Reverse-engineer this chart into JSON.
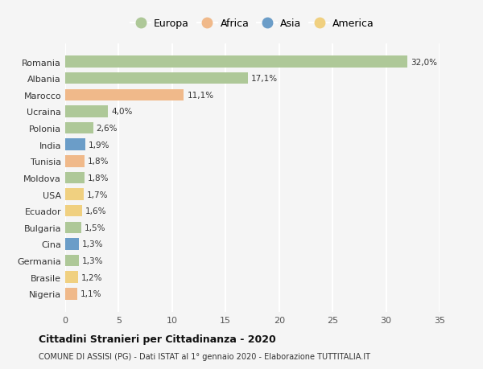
{
  "countries": [
    "Romania",
    "Albania",
    "Marocco",
    "Ucraina",
    "Polonia",
    "India",
    "Tunisia",
    "Moldova",
    "USA",
    "Ecuador",
    "Bulgaria",
    "Cina",
    "Germania",
    "Brasile",
    "Nigeria"
  ],
  "values": [
    32.0,
    17.1,
    11.1,
    4.0,
    2.6,
    1.9,
    1.8,
    1.8,
    1.7,
    1.6,
    1.5,
    1.3,
    1.3,
    1.2,
    1.1
  ],
  "labels": [
    "32,0%",
    "17,1%",
    "11,1%",
    "4,0%",
    "2,6%",
    "1,9%",
    "1,8%",
    "1,8%",
    "1,7%",
    "1,6%",
    "1,5%",
    "1,3%",
    "1,3%",
    "1,2%",
    "1,1%"
  ],
  "continents": [
    "Europa",
    "Europa",
    "Africa",
    "Europa",
    "Europa",
    "Asia",
    "Africa",
    "Europa",
    "America",
    "America",
    "Europa",
    "Asia",
    "Europa",
    "America",
    "Africa"
  ],
  "continent_colors": {
    "Europa": "#aec898",
    "Africa": "#f0b98a",
    "Asia": "#6b9dc8",
    "America": "#f0d080"
  },
  "legend_order": [
    "Europa",
    "Africa",
    "Asia",
    "America"
  ],
  "title": "Cittadini Stranieri per Cittadinanza - 2020",
  "subtitle": "COMUNE DI ASSISI (PG) - Dati ISTAT al 1° gennaio 2020 - Elaborazione TUTTITALIA.IT",
  "xlim": [
    0,
    35
  ],
  "xticks": [
    0,
    5,
    10,
    15,
    20,
    25,
    30,
    35
  ],
  "background_color": "#f5f5f5",
  "grid_color": "#ffffff",
  "bar_height": 0.7
}
